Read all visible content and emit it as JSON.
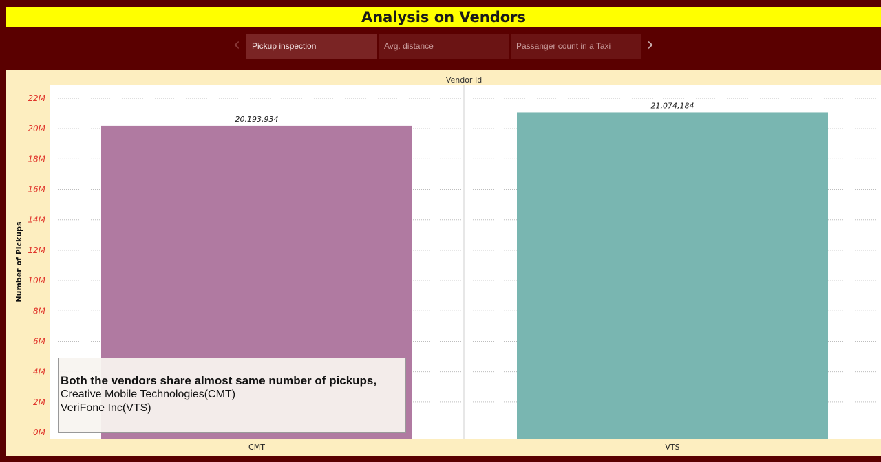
{
  "title": "Analysis on Vendors",
  "story_nav": {
    "tabs": [
      {
        "label": "Pickup inspection",
        "active": true
      },
      {
        "label": "Avg. distance",
        "active": false
      },
      {
        "label": "Passanger count in a Taxi",
        "active": false
      }
    ]
  },
  "chart_data": {
    "type": "bar",
    "column_header": "Vendor Id",
    "categories": [
      "CMT",
      "VTS"
    ],
    "values": [
      20193934,
      21074184
    ],
    "data_labels": [
      "20,193,934",
      "21,074,184"
    ],
    "ylabel": "Number of Pickups",
    "ylim": [
      0,
      23000000
    ],
    "yticks": [
      0,
      2000000,
      4000000,
      6000000,
      8000000,
      10000000,
      12000000,
      14000000,
      16000000,
      18000000,
      20000000,
      22000000
    ],
    "ytick_labels": [
      "0M",
      "2M",
      "4M",
      "6M",
      "8M",
      "10M",
      "12M",
      "14M",
      "16M",
      "18M",
      "20M",
      "22M"
    ],
    "colors": [
      "#b07aa1",
      "#79b6b1"
    ],
    "grid": true
  },
  "annotation": {
    "line1": "Both the vendors share almost same number of pickups,",
    "line2": "Creative Mobile Technologies(CMT)",
    "line3": "VeriFone Inc(VTS)"
  }
}
